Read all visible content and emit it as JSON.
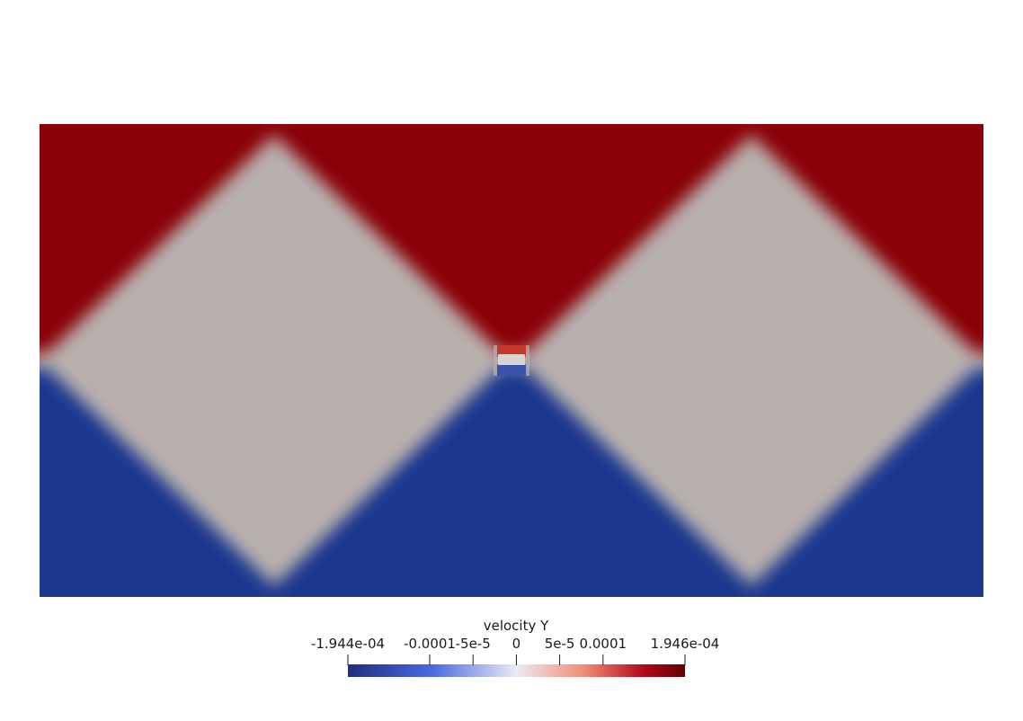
{
  "scene": {
    "background": "#ffffff",
    "field": "velocity Y",
    "colors": {
      "positive": "#8a0007",
      "negative": "#1b378e",
      "neutral": "#b8b0ad"
    }
  },
  "colorbar": {
    "title": "velocity Y",
    "min": -0.0001944,
    "max": 0.0001946,
    "ticks": [
      {
        "value": -0.0001944,
        "label": "-1.944e-04"
      },
      {
        "value": -0.0001,
        "label": "-0.0001"
      },
      {
        "value": -5e-05,
        "label": "-5e-5"
      },
      {
        "value": 0,
        "label": "0"
      },
      {
        "value": 5e-05,
        "label": "5e-5"
      },
      {
        "value": 0.0001,
        "label": "0.0001"
      },
      {
        "value": 0.0001946,
        "label": "1.946e-04"
      }
    ],
    "colormap": [
      "#3b4cc0",
      "#8db0fe",
      "#dddcdc",
      "#f49a7b",
      "#b40426",
      "#5a0000"
    ]
  }
}
